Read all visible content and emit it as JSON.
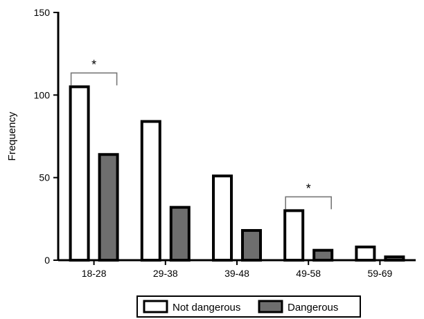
{
  "chart_data": {
    "type": "bar",
    "title": "",
    "xlabel": "",
    "ylabel": "Frequency",
    "ylim": [
      0,
      150
    ],
    "yticks": [
      0,
      50,
      100,
      150
    ],
    "categories": [
      "18-28",
      "29-38",
      "39-48",
      "49-58",
      "59-69"
    ],
    "series": [
      {
        "name": "Not dangerous",
        "color": "#ffffff",
        "values": [
          105,
          84,
          51,
          30,
          8
        ]
      },
      {
        "name": "Dangerous",
        "color": "#6e6e6e",
        "values": [
          64,
          32,
          18,
          6,
          2
        ]
      }
    ],
    "annotations": [
      {
        "category": "18-28",
        "text": "*"
      },
      {
        "category": "49-58",
        "text": "*"
      }
    ],
    "legend": {
      "placement": "bottom-center",
      "entries": [
        "Not dangerous",
        "Dangerous"
      ]
    },
    "grid": false
  }
}
